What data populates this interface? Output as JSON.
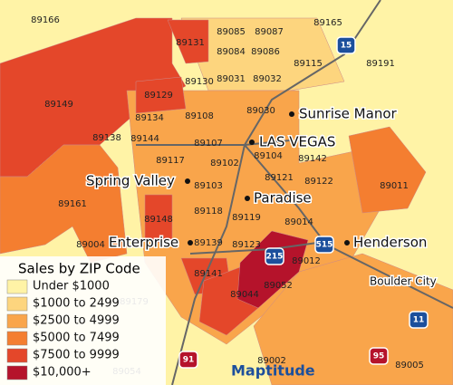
{
  "map": {
    "zip_labels": [
      "89166",
      "89131",
      "89085",
      "89087",
      "89165",
      "89084",
      "89086",
      "89115",
      "89191",
      "89149",
      "89129",
      "89130",
      "89031",
      "89032",
      "89134",
      "89108",
      "89030",
      "89138",
      "89144",
      "89107",
      "89117",
      "89102",
      "89104",
      "89142",
      "89103",
      "89121",
      "89122",
      "89011",
      "89161",
      "89118",
      "89148",
      "89119",
      "89014",
      "89004",
      "89139",
      "89123",
      "89012",
      "89052",
      "89141",
      "89044",
      "89179",
      "89002",
      "89054",
      "89005"
    ],
    "cities": [
      "Sunrise Manor",
      "LAS VEGAS",
      "Spring Valley",
      "Paradise",
      "Enterprise",
      "Henderson",
      "Boulder City"
    ],
    "highways": [
      "15",
      "515",
      "215",
      "11",
      "95",
      "91"
    ],
    "legend": {
      "title": "Sales by ZIP Code",
      "items": [
        {
          "label": "Under $1000",
          "color": "#fff3a6"
        },
        {
          "label": "$1000 to 2499",
          "color": "#fdd57e"
        },
        {
          "label": "$2500 to 4999",
          "color": "#f9a54b"
        },
        {
          "label": "$5000 to 7499",
          "color": "#f47e30"
        },
        {
          "label": "$7500 to 9999",
          "color": "#e4472a"
        },
        {
          "label": "$10,000+",
          "color": "#b5132b"
        }
      ]
    },
    "logo": "Maptitude"
  }
}
